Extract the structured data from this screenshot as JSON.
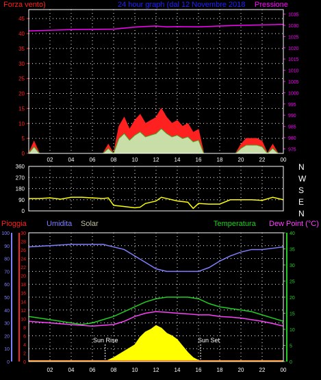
{
  "header": {
    "left_title": "Forza vento)",
    "center_title": "24 hour graph (dal 12 Novembre 2018",
    "right_title": "Pressione"
  },
  "labels": {
    "pioggia": "Pioggia",
    "umidita": "Umidita",
    "solar": "Solar",
    "temperatura": "Temperatura",
    "dew_point": "Dew Point (°C)",
    "sun_rise": "Sun Rise",
    "sun_set": "Sun Set"
  },
  "direction_letters": [
    "N",
    "W",
    "S",
    "E",
    "N"
  ],
  "colors": {
    "wind": "#ff2020",
    "wind_gust": "#ffffff",
    "wind_avg": "#20c020",
    "pressure": "#ff00ff",
    "direction": "#ffff00",
    "humidity": "#8080ff",
    "temperature": "#20d020",
    "dew_point": "#ff40ff",
    "solar": "#ffff00",
    "rain": "#ff2020",
    "grid": "#ffffff",
    "title_blue": "#2020ff"
  },
  "chart_data": [
    {
      "type": "area",
      "panel": "wind_pressure",
      "x_ticks": [
        "02",
        "04",
        "06",
        "08",
        "10",
        "12",
        "14",
        "16",
        "18",
        "20",
        "22",
        "00"
      ],
      "y_left_ticks": [
        0,
        5,
        10,
        15,
        20,
        25,
        30,
        35,
        40,
        45
      ],
      "y_left_lim": [
        0,
        48
      ],
      "y_right_ticks": [
        975,
        980,
        985,
        990,
        995,
        1000,
        1005,
        1010,
        1015,
        1020,
        1025,
        1030,
        1035
      ],
      "y_right_lim": [
        973,
        1037
      ],
      "series": [
        {
          "name": "Forza vento)",
          "axis": "left",
          "x": [
            0,
            0.5,
            1,
            1.5,
            2,
            2.5,
            3,
            3.5,
            4,
            4.5,
            5,
            5.5,
            6,
            6.5,
            7,
            7.5,
            8,
            8.5,
            9,
            9.5,
            10,
            10.5,
            11,
            11.5,
            12,
            12.5,
            13,
            13.5,
            14,
            14.5,
            15,
            15.5,
            16,
            16.5,
            17,
            17.5,
            18,
            18.5,
            19,
            19.5,
            20,
            20.5,
            21,
            21.5,
            22,
            22.5,
            23,
            23.5,
            24
          ],
          "values": [
            0,
            4,
            0,
            0,
            0,
            0,
            0,
            0,
            0,
            0,
            0,
            0,
            0,
            0,
            0,
            3,
            0,
            9,
            12,
            8,
            11,
            13,
            10,
            11,
            12,
            15,
            12,
            10,
            11,
            9,
            10,
            7,
            8,
            0,
            0,
            0,
            0,
            0,
            0,
            0,
            3,
            5,
            5,
            5,
            4,
            0,
            3,
            0,
            0
          ]
        },
        {
          "name": "Pressione",
          "axis": "right",
          "x": [
            0,
            2,
            4,
            6,
            8,
            10,
            11,
            12,
            13,
            14,
            16,
            18,
            20,
            22,
            24
          ],
          "values": [
            1027.5,
            1027.8,
            1028.1,
            1028.2,
            1028.3,
            1029.2,
            1029.5,
            1029.7,
            1029.3,
            1029.4,
            1029.3,
            1029.7,
            1030.0,
            1030.2,
            1030.4
          ]
        }
      ]
    },
    {
      "type": "line",
      "panel": "wind_direction",
      "y_ticks": [
        0,
        90,
        180,
        270,
        360
      ],
      "ylim": [
        0,
        360
      ],
      "series": [
        {
          "name": "direction",
          "x": [
            0,
            1,
            2,
            3,
            4,
            5,
            6,
            7,
            7.5,
            8,
            9,
            10,
            10.5,
            11,
            12,
            12.5,
            13,
            14,
            15,
            15.5,
            16,
            17,
            18,
            19,
            20,
            21,
            22,
            23,
            24
          ],
          "values": [
            100,
            100,
            105,
            95,
            110,
            110,
            105,
            100,
            105,
            45,
            35,
            25,
            30,
            60,
            80,
            110,
            100,
            80,
            70,
            20,
            60,
            55,
            55,
            90,
            90,
            90,
            85,
            110,
            90
          ]
        }
      ]
    },
    {
      "type": "line",
      "panel": "meteo",
      "y_humidity_ticks": [
        0,
        10,
        20,
        30,
        40,
        50,
        60,
        70,
        80,
        90,
        100
      ],
      "y_rain_ticks": [
        0,
        2,
        4,
        6,
        8,
        10,
        12,
        14,
        16,
        18,
        20,
        22,
        24,
        26,
        28,
        30
      ],
      "y_temp_ticks": [
        0,
        5,
        10,
        15,
        20,
        25,
        30,
        35,
        40
      ],
      "ylim_humidity": [
        0,
        100
      ],
      "ylim_temp": [
        0,
        40
      ],
      "series": [
        {
          "name": "Umidita",
          "axis": "humidity",
          "x": [
            0,
            2,
            4,
            6,
            7,
            8,
            9,
            10,
            11,
            12,
            13,
            14,
            15,
            16,
            17,
            18,
            19,
            20,
            21,
            22,
            23,
            24
          ],
          "values": [
            89,
            90,
            91,
            91,
            91,
            89,
            87,
            82,
            77,
            72,
            70,
            70,
            70,
            70,
            73,
            78,
            82,
            85,
            87,
            87,
            88,
            89
          ]
        },
        {
          "name": "Temperatura",
          "axis": "temp",
          "x": [
            0,
            1,
            2,
            3,
            4,
            5,
            6,
            7,
            8,
            9,
            10,
            11,
            12,
            13,
            14,
            15,
            16,
            17,
            18,
            19,
            20,
            21,
            22,
            23,
            24
          ],
          "values": [
            14,
            13.5,
            13,
            12.5,
            12,
            11.5,
            12,
            13,
            14,
            15.5,
            17,
            18.5,
            19.5,
            20,
            20,
            20,
            19.5,
            18,
            17,
            16.5,
            16,
            15.5,
            14.5,
            13.5,
            12.5
          ]
        },
        {
          "name": "Dew Point (°C)",
          "axis": "temp",
          "x": [
            0,
            2,
            4,
            6,
            8,
            9,
            10,
            11,
            12,
            13,
            14,
            15,
            16,
            17,
            18,
            19,
            20,
            21,
            22,
            23,
            24
          ],
          "values": [
            12.5,
            12,
            11.5,
            11,
            11.5,
            12.5,
            14,
            15,
            15.5,
            15.3,
            15,
            14.8,
            14.5,
            14.5,
            14,
            13.8,
            13.5,
            13,
            12.5,
            11.8,
            11
          ]
        },
        {
          "name": "Solar",
          "axis": "humidity",
          "x": [
            7.2,
            8,
            9,
            10,
            10.5,
            11,
            11.5,
            12,
            12.5,
            13,
            13.5,
            14,
            14.5,
            15,
            15.5,
            16.2
          ],
          "values": [
            0,
            3,
            8,
            13,
            19,
            23,
            25,
            28,
            26,
            22,
            20,
            17,
            12,
            7,
            3,
            0
          ]
        },
        {
          "name": "Pioggia",
          "axis": "rain",
          "x": [
            0,
            24
          ],
          "values": [
            0,
            0
          ]
        }
      ]
    }
  ]
}
